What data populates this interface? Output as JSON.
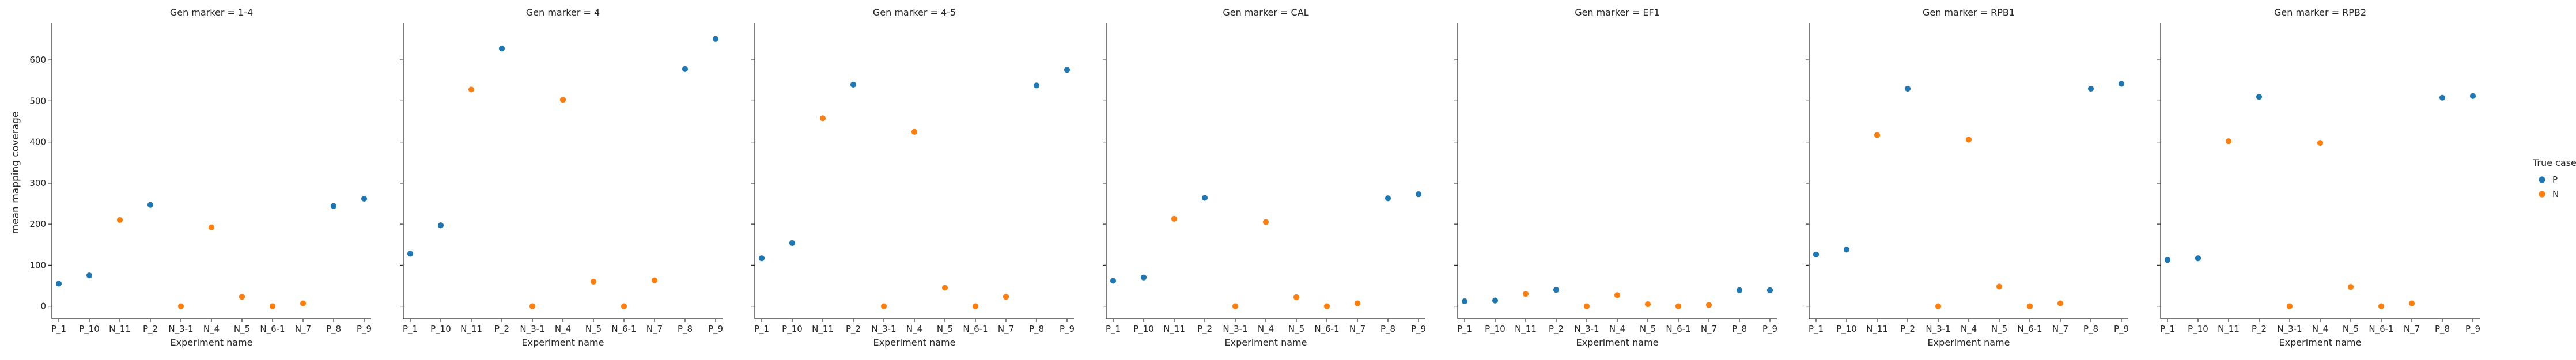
{
  "figure": {
    "ylabel": "mean mapping coverage",
    "xlabel": "Experiment name"
  },
  "legend": {
    "title": "True case",
    "placement": "right"
  },
  "chart_data": {
    "type": "scatter",
    "x": [
      "P_1",
      "P_10",
      "N_11",
      "P_2",
      "N_3-1",
      "N_4",
      "N_5",
      "N_6-1",
      "N_7",
      "P_8",
      "P_9"
    ],
    "hue": [
      "P",
      "P",
      "N",
      "P",
      "N",
      "N",
      "N",
      "N",
      "N",
      "P",
      "P"
    ],
    "hue_levels": [
      {
        "name": "P",
        "color": "#1f77b4"
      },
      {
        "name": "N",
        "color": "#ff7f0e"
      }
    ],
    "ylim": [
      -30,
      690
    ],
    "yticks": [
      0,
      100,
      200,
      300,
      400,
      500,
      600
    ],
    "ytick_labels": [
      "0",
      "100",
      "200",
      "300",
      "400",
      "500",
      "600"
    ],
    "facets": [
      {
        "title": "Gen marker = 1-4",
        "values": [
          55,
          75,
          210,
          247,
          0,
          192,
          23,
          0,
          7,
          244,
          262
        ]
      },
      {
        "title": "Gen marker = 4",
        "values": [
          128,
          197,
          528,
          628,
          0,
          503,
          60,
          0,
          63,
          578,
          651
        ]
      },
      {
        "title": "Gen marker = 4-5",
        "values": [
          117,
          154,
          458,
          540,
          0,
          425,
          45,
          0,
          23,
          538,
          576
        ]
      },
      {
        "title": "Gen marker = CAL",
        "values": [
          62,
          70,
          213,
          264,
          0,
          205,
          22,
          0,
          7,
          263,
          273
        ]
      },
      {
        "title": "Gen marker = EF1",
        "values": [
          12,
          14,
          30,
          40,
          0,
          27,
          5,
          0,
          3,
          39,
          39
        ]
      },
      {
        "title": "Gen marker = RPB1",
        "values": [
          126,
          138,
          417,
          530,
          0,
          406,
          48,
          0,
          7,
          530,
          542
        ]
      },
      {
        "title": "Gen marker = RPB2",
        "values": [
          113,
          117,
          402,
          510,
          0,
          398,
          47,
          0,
          7,
          508,
          512
        ]
      }
    ]
  }
}
